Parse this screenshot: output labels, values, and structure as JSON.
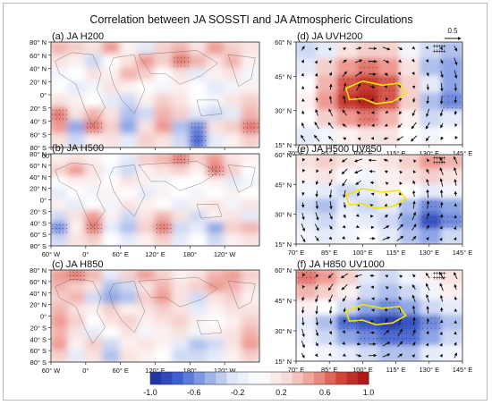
{
  "chart_data": {
    "type": "heatmap",
    "title": "Correlation between JA SOSSTI and JA Atmospheric Circulations",
    "colorbar": {
      "ticks": [
        "-1.0",
        "-0.6",
        "-0.2",
        "0.2",
        "0.6",
        "1.0"
      ],
      "range": [
        -1.0,
        1.0
      ],
      "colors": [
        "#1a2a9c",
        "#3f5fd0",
        "#8fa6e6",
        "#dfe6f7",
        "#ffffff",
        "#f7dcd9",
        "#ee9a92",
        "#d2453a",
        "#a50f15"
      ]
    },
    "global_lat_ticks": [
      "80° N",
      "60° N",
      "40° N",
      "20° N",
      "0°",
      "20° S",
      "40° S",
      "60° S",
      "80° S"
    ],
    "global_lon_ticks": [
      "60° W",
      "0°",
      "60° E",
      "120° E",
      "180°",
      "120° W"
    ],
    "regional_lat_ticks": [
      "60° N",
      "45° N",
      "30° N",
      "15° N"
    ],
    "regional_lon_ticks": [
      "70° E",
      "85° E",
      "100° E",
      "115° E",
      "130° E",
      "145° E"
    ],
    "reference_vector": "0.5",
    "panels": [
      {
        "id": "a",
        "label": "(a) JA H200",
        "grid": [
          [
            0.4,
            0.3,
            0.2,
            0.5,
            0.1,
            -0.2,
            0.3,
            0.4,
            0.2,
            0.5,
            0.3,
            0.2
          ],
          [
            0.2,
            0.1,
            -0.3,
            0.0,
            0.2,
            0.5,
            0.3,
            0.6,
            0.4,
            0.2,
            0.4,
            0.1
          ],
          [
            -0.1,
            0.0,
            0.2,
            0.1,
            0.4,
            0.3,
            0.0,
            0.2,
            -0.2,
            0.1,
            0.2,
            -0.1
          ],
          [
            0.0,
            -0.2,
            -0.1,
            0.2,
            0.1,
            0.0,
            -0.1,
            0.1,
            0.0,
            -0.2,
            -0.1,
            0.1
          ],
          [
            0.2,
            0.1,
            0.0,
            -0.2,
            -0.3,
            0.1,
            0.3,
            0.2,
            0.0,
            -0.1,
            0.2,
            0.3
          ],
          [
            0.6,
            0.2,
            0.4,
            0.2,
            -0.4,
            -0.3,
            0.4,
            0.3,
            -0.2,
            -0.3,
            -0.2,
            0.4
          ],
          [
            0.5,
            -0.5,
            0.6,
            0.3,
            -0.5,
            0.2,
            0.5,
            -0.4,
            -0.6,
            0.2,
            0.3,
            0.6
          ],
          [
            0.2,
            -0.3,
            0.1,
            0.2,
            -0.2,
            0.3,
            0.2,
            -0.3,
            -0.7,
            -0.2,
            0.1,
            0.3
          ]
        ]
      },
      {
        "id": "b",
        "label": "(b) JA H500",
        "grid": [
          [
            0.1,
            0.2,
            0.1,
            0.0,
            -0.2,
            0.3,
            0.4,
            0.6,
            0.3,
            0.5,
            0.2,
            0.1
          ],
          [
            0.3,
            0.5,
            0.2,
            -0.1,
            -0.3,
            0.1,
            0.2,
            0.3,
            0.1,
            0.6,
            0.3,
            0.0
          ],
          [
            0.0,
            0.1,
            0.1,
            0.0,
            0.2,
            0.1,
            -0.1,
            0.0,
            0.0,
            0.1,
            -0.2,
            -0.1
          ],
          [
            -0.2,
            0.0,
            -0.1,
            0.1,
            0.0,
            -0.2,
            0.1,
            0.0,
            -0.1,
            0.0,
            0.1,
            0.0
          ],
          [
            0.1,
            -0.2,
            0.0,
            -0.1,
            0.2,
            0.1,
            0.0,
            -0.2,
            0.1,
            0.2,
            -0.1,
            0.2
          ],
          [
            -0.3,
            0.2,
            0.5,
            0.1,
            -0.3,
            0.2,
            0.4,
            0.2,
            -0.3,
            0.1,
            0.2,
            -0.2
          ],
          [
            -0.6,
            0.1,
            0.6,
            -0.2,
            -0.4,
            0.3,
            0.6,
            -0.3,
            -0.2,
            -0.5,
            0.3,
            0.4
          ],
          [
            -0.3,
            0.2,
            0.3,
            0.0,
            -0.2,
            0.1,
            0.3,
            -0.2,
            0.0,
            -0.3,
            0.1,
            0.2
          ]
        ]
      },
      {
        "id": "c",
        "label": "(c) JA H850",
        "grid": [
          [
            0.5,
            0.6,
            0.4,
            -0.2,
            0.3,
            0.5,
            0.3,
            0.1,
            0.2,
            0.4,
            0.5,
            0.3
          ],
          [
            0.4,
            0.3,
            0.2,
            -0.4,
            -0.3,
            0.2,
            0.4,
            0.2,
            0.3,
            0.5,
            0.4,
            0.2
          ],
          [
            0.3,
            0.4,
            -0.3,
            -0.5,
            -0.4,
            0.3,
            0.5,
            0.2,
            -0.3,
            0.2,
            0.3,
            0.1
          ],
          [
            0.4,
            0.2,
            0.1,
            0.3,
            0.1,
            0.2,
            0.3,
            0.2,
            -0.2,
            0.1,
            0.2,
            0.2
          ],
          [
            0.5,
            0.3,
            0.0,
            0.2,
            0.3,
            0.1,
            0.2,
            0.3,
            0.1,
            0.0,
            0.1,
            0.3
          ],
          [
            0.4,
            0.2,
            -0.2,
            0.0,
            0.2,
            -0.1,
            0.1,
            0.2,
            -0.1,
            0.1,
            0.2,
            0.4
          ],
          [
            0.5,
            0.1,
            0.3,
            -0.3,
            0.1,
            0.2,
            0.1,
            -0.2,
            -0.4,
            -0.3,
            0.2,
            0.5
          ],
          [
            0.3,
            -0.2,
            0.2,
            -0.4,
            0.2,
            0.1,
            0.0,
            -0.3,
            -0.3,
            -0.2,
            0.1,
            0.3
          ]
        ]
      },
      {
        "id": "d",
        "label": "(d) JA UVH200",
        "grid": [
          [
            -0.3,
            -0.2,
            0.2,
            0.3,
            0.3,
            -0.1,
            -0.3,
            -0.4
          ],
          [
            -0.2,
            0.3,
            0.5,
            0.6,
            0.5,
            0.2,
            -0.4,
            -0.5
          ],
          [
            0.0,
            0.4,
            0.7,
            0.8,
            0.7,
            0.3,
            -0.2,
            -0.5
          ],
          [
            0.1,
            0.5,
            0.8,
            0.9,
            0.7,
            0.3,
            -0.4,
            -0.6
          ],
          [
            0.0,
            0.3,
            0.5,
            0.6,
            0.4,
            0.1,
            -0.3,
            -0.2
          ],
          [
            -0.2,
            -0.1,
            0.1,
            0.2,
            0.2,
            0.0,
            -0.1,
            0.0
          ]
        ]
      },
      {
        "id": "e",
        "label": "(e) JA H500 UV850",
        "grid": [
          [
            0.2,
            0.3,
            0.2,
            0.1,
            0.2,
            0.3,
            0.5,
            0.4
          ],
          [
            0.1,
            0.2,
            0.0,
            -0.1,
            0.1,
            0.2,
            0.3,
            0.2
          ],
          [
            -0.1,
            -0.2,
            -0.3,
            -0.2,
            0.1,
            0.0,
            -0.2,
            -0.1
          ],
          [
            -0.3,
            -0.4,
            -0.2,
            -0.3,
            -0.2,
            -0.4,
            -0.6,
            -0.5
          ],
          [
            -0.2,
            -0.3,
            -0.1,
            -0.2,
            -0.3,
            -0.5,
            -0.8,
            -0.6
          ],
          [
            -0.1,
            -0.2,
            -0.1,
            0.0,
            -0.2,
            -0.4,
            -0.5,
            -0.3
          ]
        ]
      },
      {
        "id": "f",
        "label": "(f) JA H850 UV1000",
        "grid": [
          [
            0.6,
            0.5,
            0.3,
            -0.2,
            -0.3,
            -0.1,
            0.1,
            0.2
          ],
          [
            0.4,
            0.3,
            0.1,
            -0.3,
            -0.4,
            -0.3,
            -0.1,
            0.1
          ],
          [
            0.1,
            0.0,
            -0.3,
            -0.5,
            -0.6,
            -0.5,
            -0.3,
            -0.2
          ],
          [
            -0.2,
            -0.4,
            -0.7,
            -0.8,
            -0.9,
            -0.8,
            -0.6,
            -0.4
          ],
          [
            -0.1,
            -0.3,
            -0.5,
            -0.6,
            -0.7,
            -0.7,
            -0.5,
            -0.3
          ],
          [
            0.0,
            -0.1,
            -0.2,
            -0.3,
            -0.4,
            -0.4,
            -0.2,
            -0.1
          ]
        ]
      }
    ]
  }
}
